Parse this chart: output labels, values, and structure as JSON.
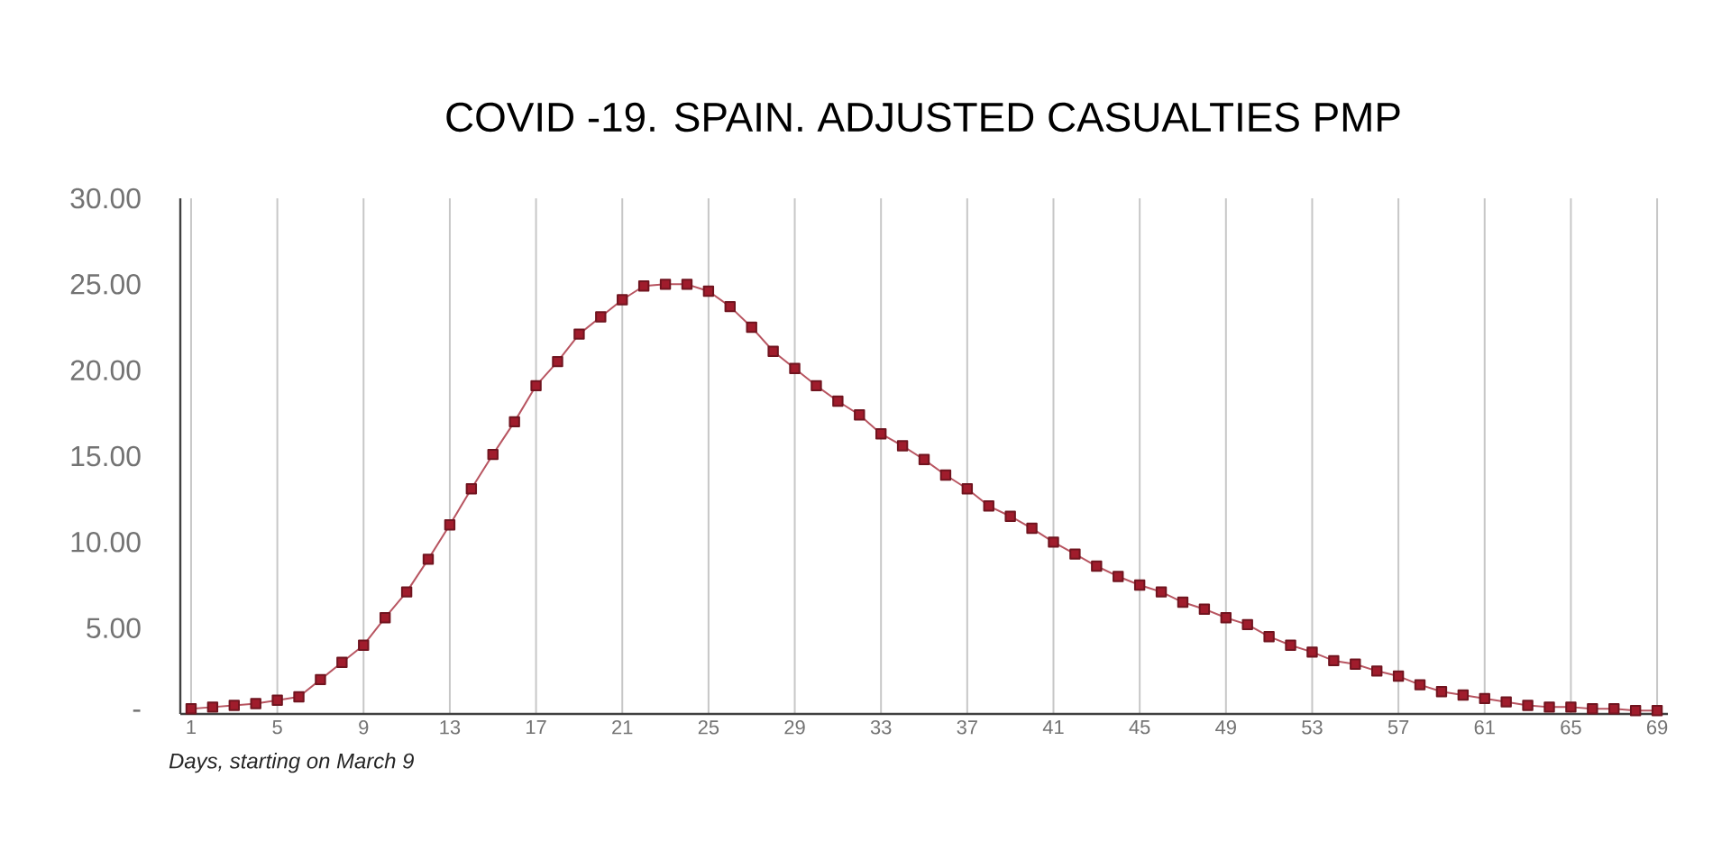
{
  "chart_data": {
    "type": "line",
    "title": "COVID -19. SPAIN. ADJUSTED CASUALTIES PMP",
    "xlabel": "Days, starting on March 9",
    "x": [
      1,
      2,
      3,
      4,
      5,
      6,
      7,
      8,
      9,
      10,
      11,
      12,
      13,
      14,
      15,
      16,
      17,
      18,
      19,
      20,
      21,
      22,
      23,
      24,
      25,
      26,
      27,
      28,
      29,
      30,
      31,
      32,
      33,
      34,
      35,
      36,
      37,
      38,
      39,
      40,
      41,
      42,
      43,
      44,
      45,
      46,
      47,
      48,
      49,
      50,
      51,
      52,
      53,
      54,
      55,
      56,
      57,
      58,
      59,
      60,
      61,
      62,
      63,
      64,
      65,
      66,
      67,
      68,
      69
    ],
    "series": [
      {
        "color": "#a01c2c",
        "values": [
          0.3,
          0.4,
          0.5,
          0.6,
          0.8,
          1.0,
          2.0,
          3.0,
          4.0,
          5.6,
          7.1,
          9.0,
          11.0,
          13.1,
          15.1,
          17.0,
          19.1,
          20.5,
          22.1,
          23.1,
          24.1,
          24.9,
          25.0,
          25.0,
          24.6,
          23.7,
          22.5,
          21.1,
          20.1,
          19.1,
          18.2,
          17.4,
          16.3,
          15.6,
          14.8,
          13.9,
          13.1,
          12.1,
          11.5,
          10.8,
          10.0,
          9.3,
          8.6,
          8.0,
          7.5,
          7.1,
          6.5,
          6.1,
          5.6,
          5.2,
          4.5,
          4.0,
          3.6,
          3.1,
          2.9,
          2.5,
          2.2,
          1.7,
          1.3,
          1.1,
          0.9,
          0.7,
          0.5,
          0.4,
          0.4,
          0.3,
          0.3,
          0.2,
          0.2
        ]
      }
    ],
    "xlim": [
      0.5,
      69.5
    ],
    "xticks": [
      1,
      5,
      9,
      13,
      17,
      21,
      25,
      29,
      33,
      37,
      41,
      45,
      49,
      53,
      57,
      61,
      65,
      69
    ],
    "ylim": [
      0,
      30
    ],
    "yticks": [
      {
        "value": 0,
        "label": "-"
      },
      {
        "value": 5,
        "label": "5.00"
      },
      {
        "value": 10,
        "label": "10.00"
      },
      {
        "value": 15,
        "label": "15.00"
      },
      {
        "value": 20,
        "label": "20.00"
      },
      {
        "value": 25,
        "label": "25.00"
      },
      {
        "value": 30,
        "label": "30.00"
      }
    ],
    "grid": "x",
    "marker": "square",
    "line_style": "solid"
  }
}
